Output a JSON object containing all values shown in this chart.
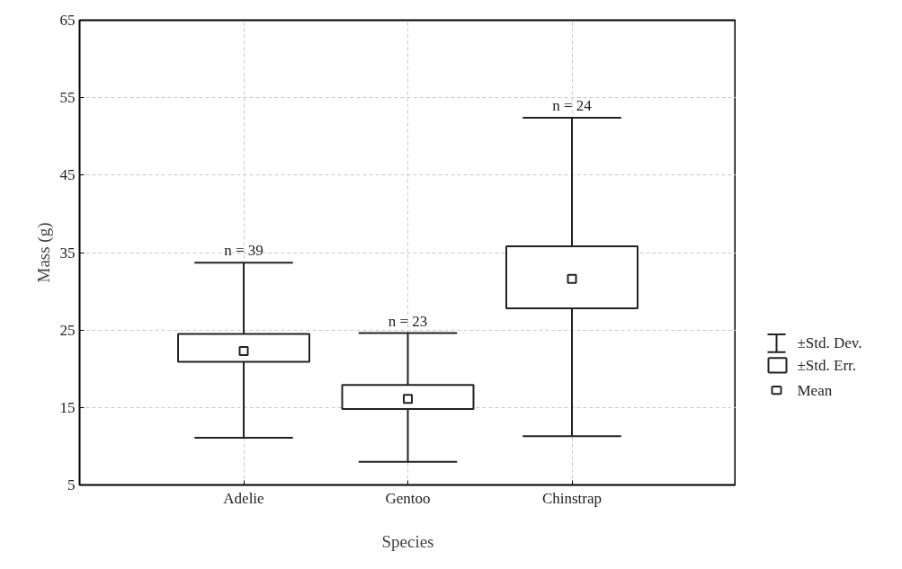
{
  "chart_data": {
    "type": "box",
    "xlabel": "Species",
    "ylabel": "Mass (g)",
    "categories": [
      "Adelie",
      "Gentoo",
      "Chinstrap"
    ],
    "boxes": [
      {
        "low": 11.1,
        "q1": 20.9,
        "median": 22.3,
        "q3": 24.5,
        "high": 33.7
      },
      {
        "low": 8.0,
        "q1": 14.8,
        "median": 16.1,
        "q3": 17.9,
        "high": 24.6
      },
      {
        "low": 11.3,
        "q1": 27.8,
        "median": 31.6,
        "q3": 35.8,
        "high": 52.4
      }
    ],
    "ylim": [
      5,
      65
    ],
    "yticks": [
      5,
      15,
      25,
      35,
      45,
      55,
      65
    ],
    "grid": true,
    "annotations": [
      {
        "text": "n = 39",
        "x": "Adelie",
        "y": 33.7
      },
      {
        "text": "n = 23",
        "x": "Gentoo",
        "y": 24.6
      },
      {
        "text": "n = 24",
        "x": "Chinstrap",
        "y": 52.4
      },
      "±Std. Dev.",
      "±Std. Err.",
      "Mean"
    ]
  }
}
